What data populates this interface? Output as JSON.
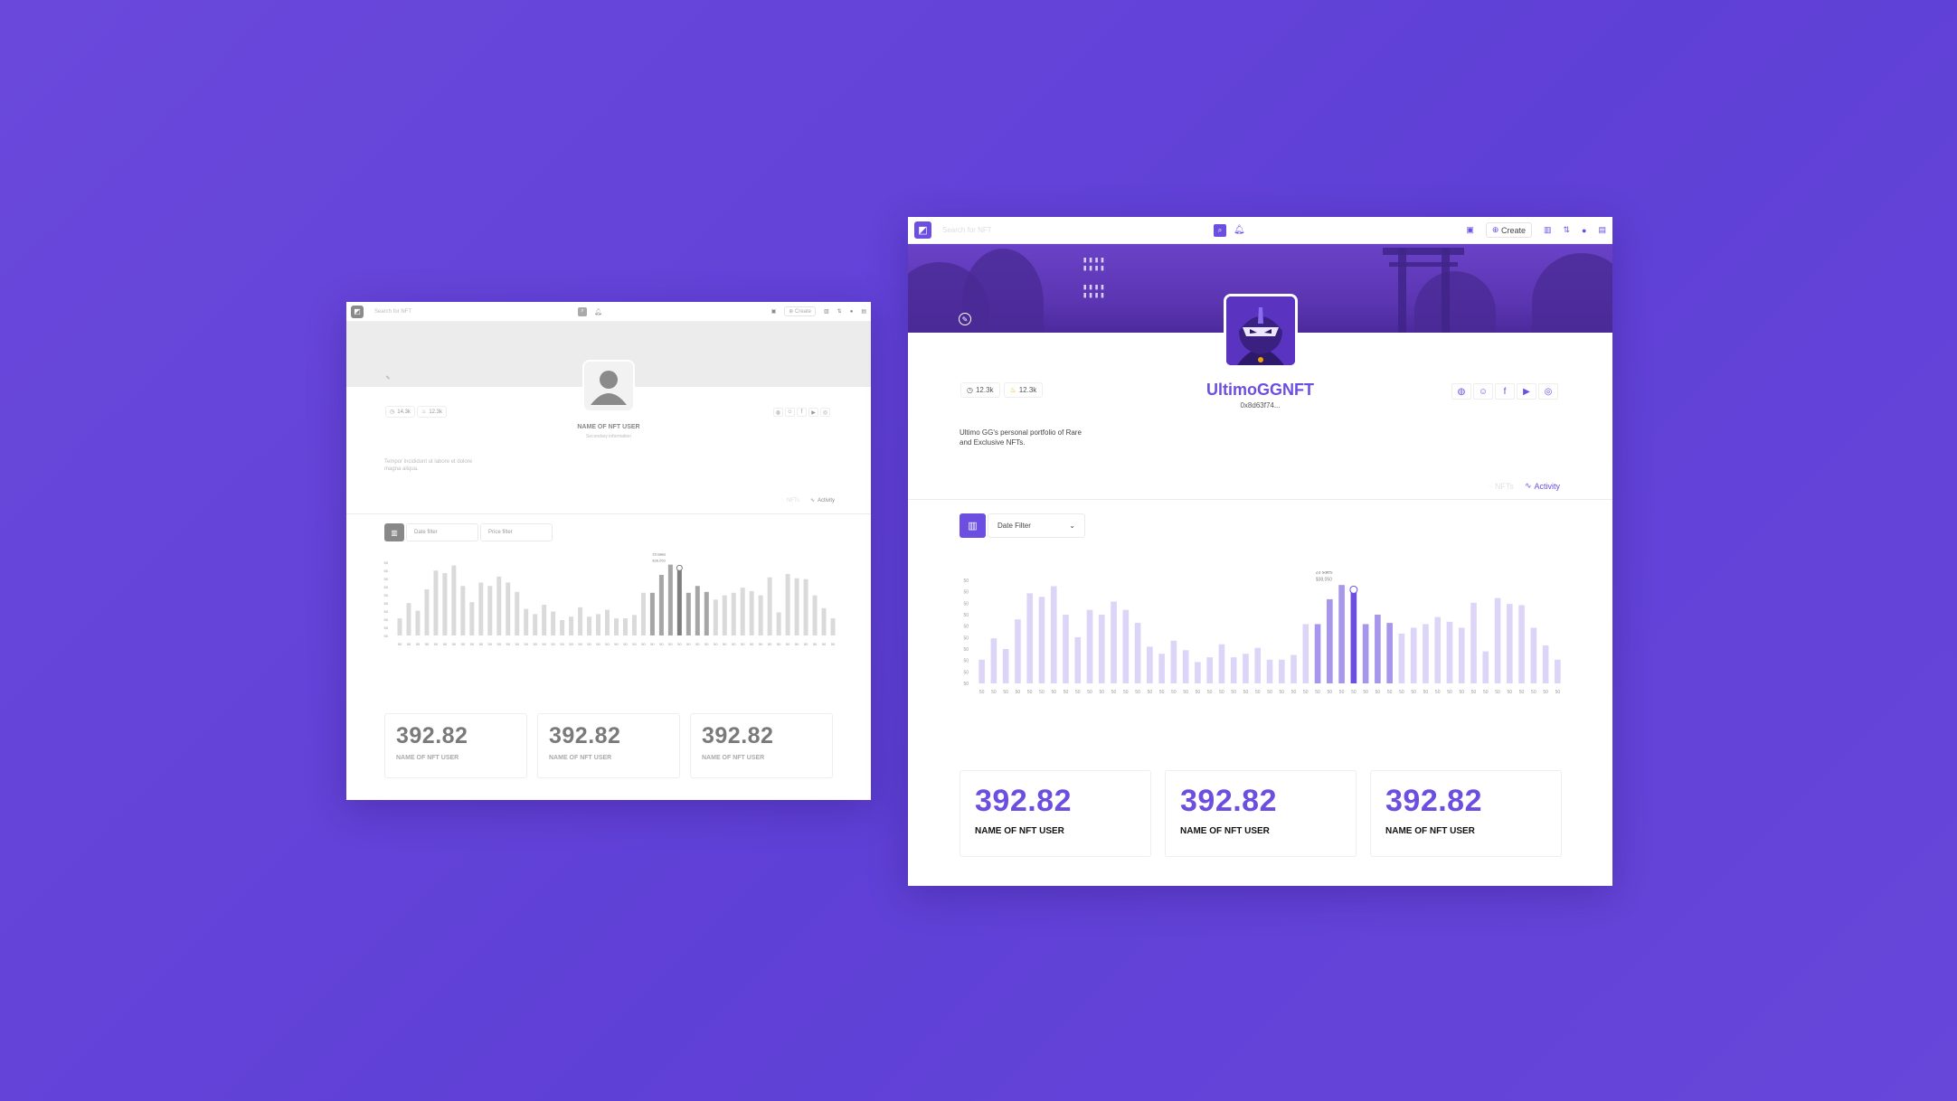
{
  "gray": {
    "search_placeholder": "Search for NFT",
    "create_label": "Create",
    "stats": [
      {
        "icon": "clock-icon",
        "value": "14.3k"
      },
      {
        "icon": "flame-icon",
        "value": "12.3k"
      }
    ],
    "username": "NAME OF NFT USER",
    "secondary": "Secondary information",
    "bio": "Tempor incididunt ut labore et dolore magna aliqua.",
    "tabs": {
      "nfts": "NFTs",
      "activity": "Activity"
    },
    "filters": {
      "date": "Date filter",
      "price": "Price filter"
    },
    "tooltip": {
      "line1": "23 sales",
      "line2": "$38,050"
    },
    "cards": [
      {
        "value": "392.82",
        "label": "NAME OF NFT USER"
      },
      {
        "value": "392.82",
        "label": "NAME OF NFT USER"
      },
      {
        "value": "392.82",
        "label": "NAME OF NFT USER"
      }
    ]
  },
  "color": {
    "search_placeholder": "Search for NFT",
    "create_label": "Create",
    "stats": [
      {
        "icon": "clock-icon",
        "value": "12.3k"
      },
      {
        "icon": "flame-icon",
        "value": "12.3k"
      }
    ],
    "username": "UltimoGGNFT",
    "address": "0x8d63f74...",
    "bio": "Ultimo GG's personal portfolio of Rare and Exclusive NFTs.",
    "tabs": {
      "nfts": "NFTs",
      "activity": "Activity"
    },
    "filters": {
      "date": "Date Filter"
    },
    "tooltip": {
      "line1": "23 sales",
      "line2": "$38,050"
    },
    "cards": [
      {
        "value": "392.82",
        "label": "NAME OF NFT USER"
      },
      {
        "value": "392.82",
        "label": "NAME OF NFT USER"
      },
      {
        "value": "392.82",
        "label": "NAME OF NFT USER"
      }
    ]
  },
  "colors": {
    "accent": "#6c4ee0",
    "bg": "#6547da",
    "gray_bar": "#d8d8d8",
    "gray_dark": "#8a8a8a",
    "purple_light": "#d9d1f6",
    "purple_mid": "#a897ec"
  },
  "chart_data": [
    {
      "type": "bar",
      "y_tick_labels": [
        "50",
        "50",
        "50",
        "50",
        "50",
        "50",
        "50",
        "50",
        "50",
        "50"
      ],
      "x_tick_label": "50",
      "values": [
        20,
        38,
        29,
        54,
        76,
        73,
        82,
        58,
        39,
        62,
        58,
        69,
        62,
        51,
        31,
        25,
        36,
        28,
        18,
        22,
        33,
        22,
        25,
        30,
        20,
        20,
        24,
        50,
        50,
        71,
        83,
        79,
        50,
        58,
        51,
        42,
        47,
        50,
        56,
        52,
        47,
        68,
        27,
        72,
        67,
        66,
        47,
        32,
        20
      ],
      "highlight_index": 31
    },
    {
      "type": "bar",
      "y_tick_labels": [
        "50",
        "50",
        "50",
        "50",
        "50",
        "50",
        "50",
        "50",
        "50",
        "50"
      ],
      "x_tick_label": "50",
      "values": [
        20,
        38,
        29,
        54,
        76,
        73,
        82,
        58,
        39,
        62,
        58,
        69,
        62,
        51,
        31,
        25,
        36,
        28,
        18,
        22,
        33,
        22,
        25,
        30,
        20,
        20,
        24,
        50,
        50,
        71,
        83,
        79,
        50,
        58,
        51,
        42,
        47,
        50,
        56,
        52,
        47,
        68,
        27,
        72,
        67,
        66,
        47,
        32,
        20
      ],
      "highlight_index": 31
    }
  ]
}
